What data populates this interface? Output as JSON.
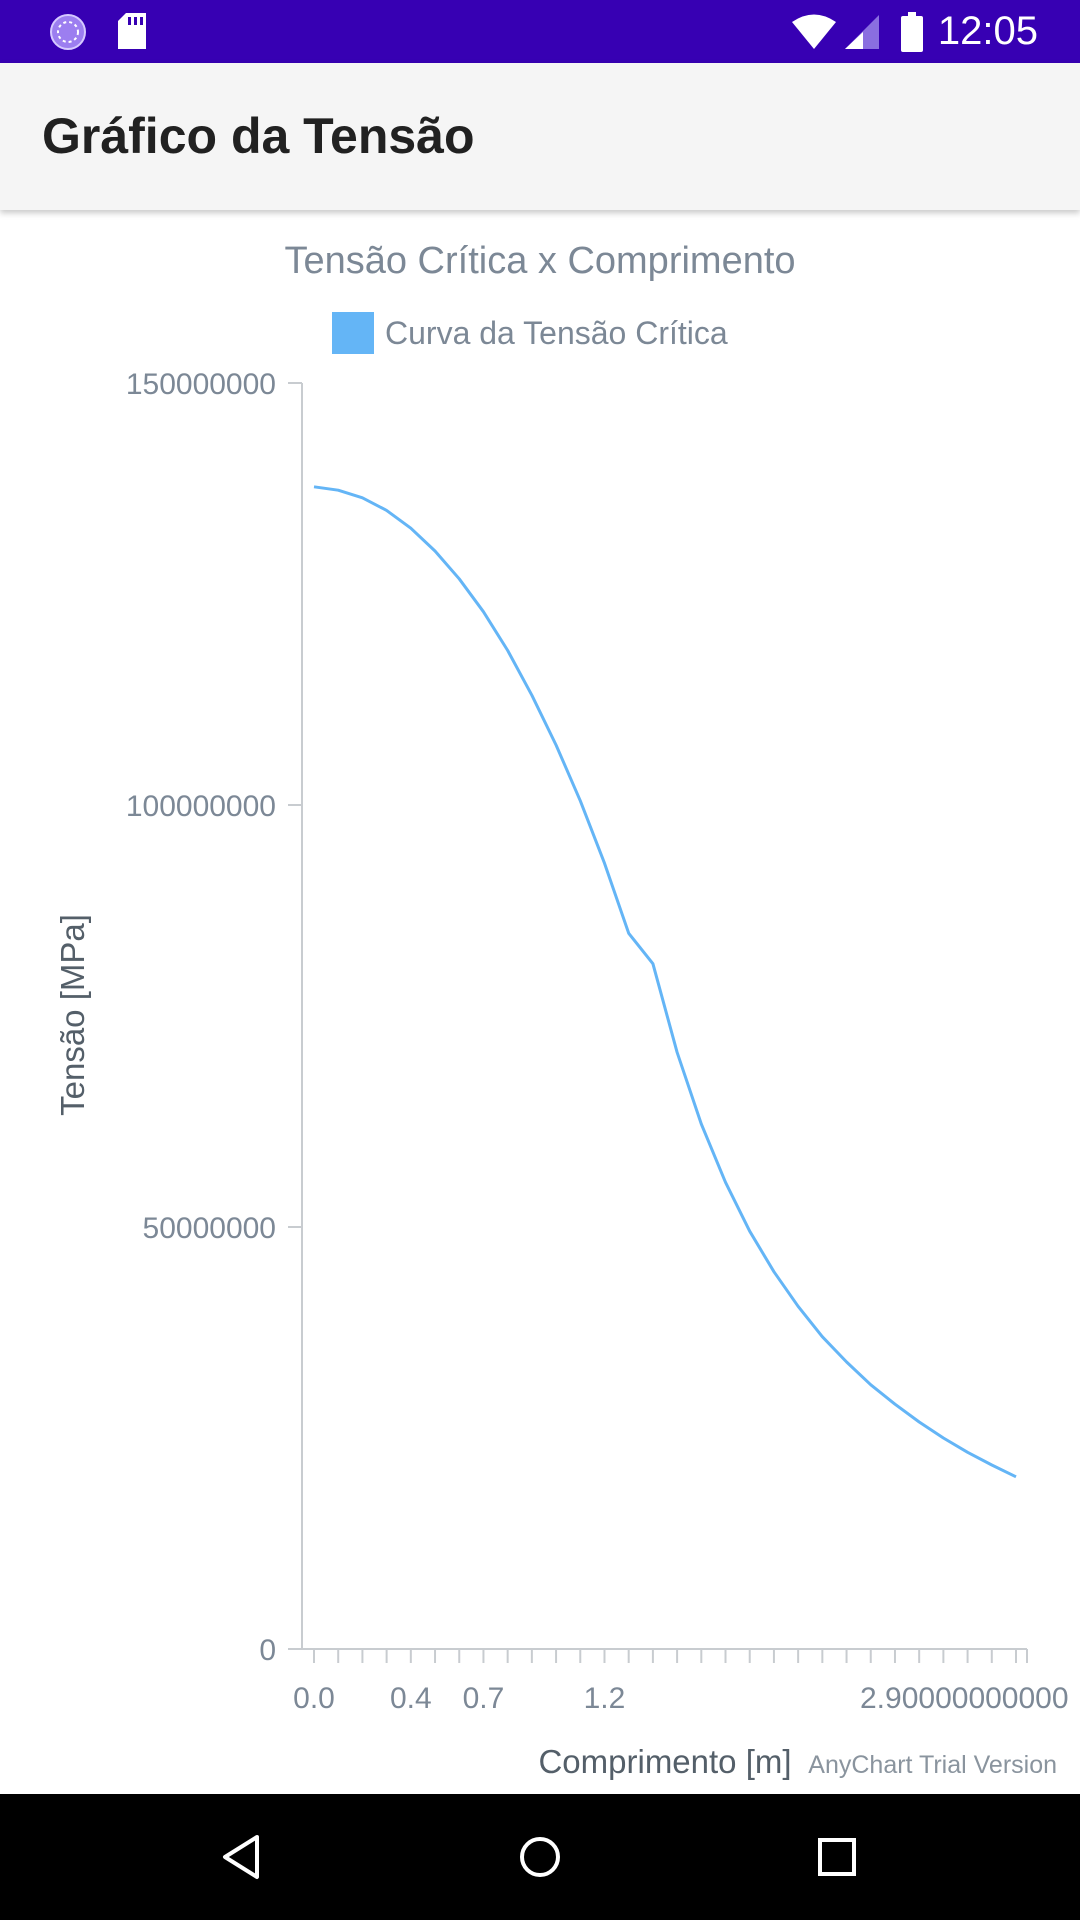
{
  "status_bar": {
    "time": "12:05",
    "icons_left": [
      "sync-icon",
      "sd-card-icon"
    ],
    "icons_right": [
      "wifi-icon",
      "signal-icon",
      "battery-icon"
    ],
    "bg_color": "#3700b3"
  },
  "app_bar": {
    "title": "Gráfico da Tensão"
  },
  "watermark": "AnyChart Trial Version",
  "nav_bar": {
    "icons": [
      "back-icon",
      "home-icon",
      "recents-icon"
    ]
  },
  "chart_data": {
    "type": "line",
    "title": "Tensão Crítica x Comprimento",
    "xlabel": "Comprimento [m]",
    "ylabel": "Tensão [MPa]",
    "ylim": [
      0,
      150000000
    ],
    "y_ticks": [
      0,
      50000000,
      100000000,
      150000000
    ],
    "y_tick_labels": [
      "0",
      "50000000",
      "100000000",
      "150000000"
    ],
    "x_tick_labels": [
      {
        "x": 0.0,
        "label": "0.0"
      },
      {
        "x": 0.4,
        "label": "0.4"
      },
      {
        "x": 0.7,
        "label": "0.7"
      },
      {
        "x": 1.2,
        "label": "1.2"
      },
      {
        "x": 2.9,
        "label": "2.90000000000"
      }
    ],
    "legend": {
      "position": "top",
      "entries": [
        "Curva da Tensão Crítica"
      ]
    },
    "series_color": "#64b5f6",
    "grid": false,
    "series": [
      {
        "name": "Curva da Tensão Crítica",
        "x": [
          0.0,
          0.1,
          0.2,
          0.3,
          0.4,
          0.5,
          0.6,
          0.7,
          0.8,
          0.9,
          1.0,
          1.1,
          1.2,
          1.3,
          1.4,
          1.5,
          1.6,
          1.7,
          1.8,
          1.9,
          2.0,
          2.1,
          2.2,
          2.3,
          2.4,
          2.5,
          2.6,
          2.7,
          2.8,
          2.9
        ],
        "values": [
          137700000,
          137300000,
          136400000,
          134900000,
          132800000,
          130100000,
          126800000,
          122900000,
          118300000,
          113000000,
          107100000,
          100500000,
          93100000,
          84800000,
          81200000,
          70700000,
          62200000,
          55300000,
          49500000,
          44700000,
          40600000,
          37000000,
          34000000,
          31300000,
          29000000,
          26900000,
          25000000,
          23300000,
          21800000,
          20400000
        ]
      }
    ]
  }
}
